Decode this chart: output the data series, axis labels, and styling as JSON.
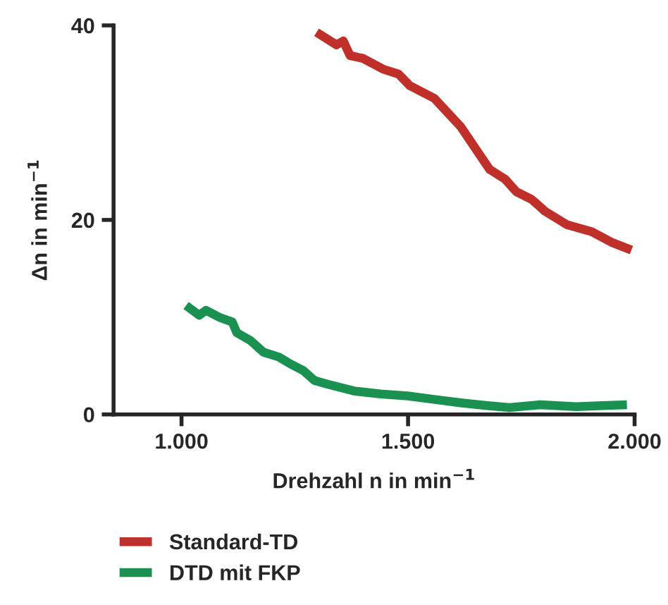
{
  "chart_data": {
    "type": "line",
    "xlabel": "Drehzahl n in min$^{−1}$",
    "ylabel": "Δn in min$^{−1}$",
    "xlim": [
      850,
      2000
    ],
    "xticks": [
      {
        "value": 1000,
        "label": "1.000"
      },
      {
        "value": 1500,
        "label": "1.500"
      },
      {
        "value": 2000,
        "label": "2.000"
      }
    ],
    "ylim": [
      0,
      40
    ],
    "yticks": [
      0,
      20,
      40
    ],
    "grid": false,
    "legend": "bottom left",
    "marker": "none",
    "line_style": "solid",
    "series": [
      {
        "name": "Standard-TD",
        "color": "#c0302a",
        "x": [
          1298,
          1342,
          1357,
          1372,
          1401,
          1445,
          1479,
          1504,
          1558,
          1616,
          1680,
          1714,
          1739,
          1773,
          1802,
          1851,
          1905,
          1949,
          1993
        ],
        "values": [
          39.3,
          38.0,
          38.4,
          36.9,
          36.6,
          35.5,
          35.0,
          33.8,
          32.5,
          29.6,
          25.2,
          24.2,
          22.9,
          22.1,
          20.9,
          19.5,
          18.8,
          17.7,
          16.9
        ]
      },
      {
        "name": "DTD mit FKP",
        "color": "#1a9150",
        "x": [
          1010,
          1039,
          1054,
          1083,
          1112,
          1122,
          1152,
          1181,
          1215,
          1240,
          1269,
          1293,
          1323,
          1382,
          1440,
          1499,
          1548,
          1616,
          1675,
          1724,
          1792,
          1871,
          1929,
          1983
        ],
        "values": [
          11.2,
          10.2,
          10.7,
          10.0,
          9.5,
          8.4,
          7.6,
          6.4,
          5.9,
          5.2,
          4.5,
          3.5,
          3.1,
          2.4,
          2.1,
          1.9,
          1.6,
          1.2,
          0.9,
          0.7,
          1.0,
          0.8,
          0.9,
          1.0
        ]
      }
    ]
  }
}
